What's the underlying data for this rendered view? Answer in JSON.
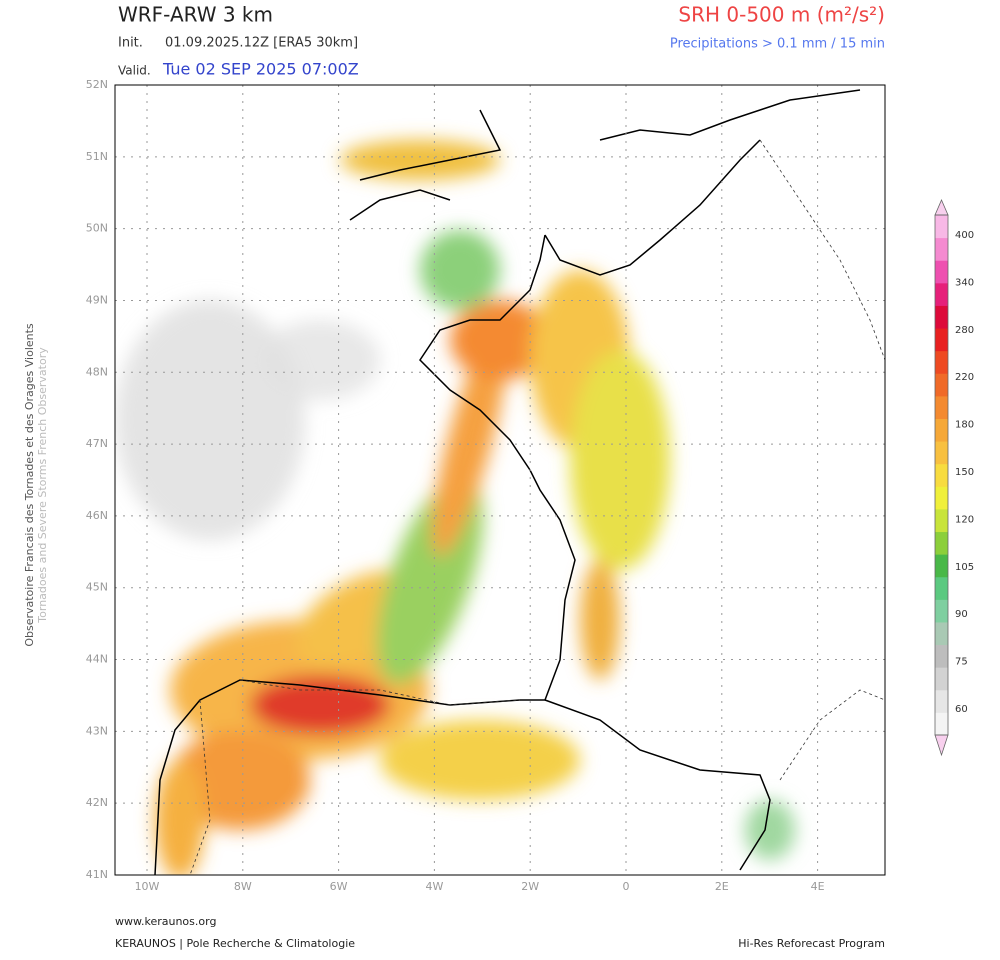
{
  "header": {
    "model": "WRF-ARW 3 km",
    "init_label": "Init.",
    "init_value": "01.09.2025.12Z [ERA5 30km]",
    "valid_label": "Valid.",
    "valid_value": "Tue 02 SEP 2025 07:00Z",
    "field": "SRH 0-500 m (m²/s²)",
    "precip_note": "Precipitations > 0.1 mm / 15 min"
  },
  "side": {
    "line1": "Observatoire Francais des Tornades et des Orages Violents",
    "line2": "Tornadoes and Severe Storms French Observatory"
  },
  "map": {
    "lat_labels": [
      "52N",
      "51N",
      "50N",
      "49N",
      "48N",
      "47N",
      "46N",
      "45N",
      "44N",
      "43N",
      "42N",
      "41N"
    ],
    "lon_labels": [
      "10W",
      "8W",
      "6W",
      "4W",
      "2W",
      "0",
      "2E",
      "4E"
    ]
  },
  "colorbar": {
    "ticks": [
      60,
      75,
      90,
      105,
      120,
      150,
      180,
      220,
      280,
      340,
      400
    ]
  },
  "footer": {
    "site": "www.keraunos.org",
    "org": "KERAUNOS | Pole Recherche & Climatologie",
    "program": "Hi-Res Reforecast Program"
  }
}
